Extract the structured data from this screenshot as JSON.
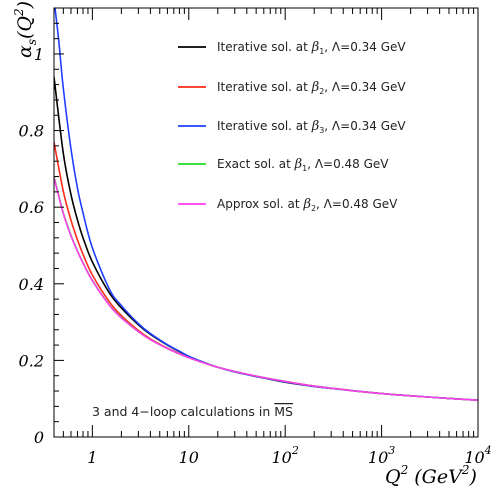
{
  "chart_data": {
    "type": "line",
    "x_scale": "log",
    "xlim": [
      0.4,
      10000
    ],
    "ylim": [
      0,
      1.12
    ],
    "grid": false,
    "legend_placement": "top-right",
    "ylabel": {
      "prefix": "α",
      "sub": "s",
      "body": "(Q",
      "sup": "2",
      "tail": ")"
    },
    "xlabel": {
      "q": "Q",
      "q_sup": "2",
      "unit": " (GeV",
      "unit_sup": "2",
      "tail": ")"
    },
    "y_ticks": [
      "0",
      "0.2",
      "0.4",
      "0.6",
      "0.8",
      "1"
    ],
    "y_tick_values": [
      0,
      0.2,
      0.4,
      0.6,
      0.8,
      1.0
    ],
    "x_ticks": [
      {
        "value": 1,
        "base": "1",
        "exp": ""
      },
      {
        "value": 10,
        "base": "10",
        "exp": ""
      },
      {
        "value": 100,
        "base": "10",
        "exp": "2"
      },
      {
        "value": 1000,
        "base": "10",
        "exp": "3"
      },
      {
        "value": 10000,
        "base": "10",
        "exp": "4"
      }
    ],
    "series": [
      {
        "name": "Iterative sol. at β1, Λ=0.34 GeV",
        "label": {
          "pre": "Iterative sol. at ",
          "beta": "β",
          "idx": "1",
          "post": ", Λ=0.34 GeV"
        },
        "color": "#000000",
        "x": [
          0.4,
          0.5,
          0.6,
          0.7,
          0.8,
          1,
          1.5,
          2,
          3,
          4,
          6,
          8,
          10,
          15,
          20,
          30,
          50,
          100,
          200,
          500,
          1000,
          2000,
          5000,
          10000
        ],
        "y": [
          0.94,
          0.74,
          0.633,
          0.567,
          0.52,
          0.457,
          0.376,
          0.337,
          0.293,
          0.268,
          0.24,
          0.223,
          0.21,
          0.193,
          0.182,
          0.17,
          0.158,
          0.143,
          0.132,
          0.121,
          0.1135,
          0.1075,
          0.1008,
          0.0962
        ]
      },
      {
        "name": "Iterative sol. at β2, Λ=0.34 GeV",
        "label": {
          "pre": "Iterative sol. at ",
          "beta": "β",
          "idx": "2",
          "post": ", Λ=0.34 GeV"
        },
        "color": "#ff2a1a",
        "x": [
          0.4,
          0.5,
          0.6,
          0.7,
          0.8,
          1,
          1.5,
          2,
          3,
          4,
          6,
          8,
          10,
          15,
          20,
          30,
          50,
          100,
          200,
          500,
          1000,
          2000,
          5000,
          10000
        ],
        "y": [
          0.77,
          0.641,
          0.566,
          0.515,
          0.477,
          0.423,
          0.353,
          0.317,
          0.278,
          0.256,
          0.232,
          0.218,
          0.208,
          0.192,
          0.182,
          0.171,
          0.159,
          0.145,
          0.133,
          0.121,
          0.1135,
          0.1075,
          0.1008,
          0.0962
        ]
      },
      {
        "name": "Iterative sol. at β3, Λ=0.34 GeV",
        "label": {
          "pre": "Iterative sol. at ",
          "beta": "β",
          "idx": "3",
          "post": ", Λ=0.34 GeV"
        },
        "color": "#1f3fff",
        "x": [
          0.41,
          0.45,
          0.5,
          0.6,
          0.7,
          0.8,
          1,
          1.5,
          2,
          3,
          4,
          6,
          8,
          10,
          15,
          20,
          30,
          50,
          100,
          200,
          500,
          1000,
          2000,
          5000,
          10000
        ],
        "y": [
          1.12,
          1.03,
          0.91,
          0.752,
          0.65,
          0.585,
          0.494,
          0.386,
          0.343,
          0.296,
          0.27,
          0.241,
          0.224,
          0.211,
          0.193,
          0.182,
          0.17,
          0.158,
          0.144,
          0.132,
          0.121,
          0.1135,
          0.1075,
          0.1008,
          0.0962
        ]
      },
      {
        "name": "Exact sol. at β1, Λ=0.48 GeV",
        "label": {
          "pre": "Exact sol. at ",
          "beta": "β",
          "idx": "1",
          "post": ", Λ=0.48 GeV"
        },
        "color": "#22dd22",
        "x": [
          0.4,
          0.5,
          0.6,
          0.7,
          0.8,
          1,
          1.5,
          2,
          3,
          4,
          6,
          8,
          10,
          15,
          20,
          30,
          50,
          100,
          200,
          500,
          1000,
          2000,
          5000,
          10000
        ],
        "y": [
          0.68,
          0.585,
          0.527,
          0.486,
          0.455,
          0.409,
          0.345,
          0.312,
          0.275,
          0.254,
          0.231,
          0.217,
          0.207,
          0.192,
          0.182,
          0.171,
          0.159,
          0.145,
          0.133,
          0.121,
          0.1135,
          0.1075,
          0.1008,
          0.0962
        ]
      },
      {
        "name": "Approx sol. at β2, Λ=0.48 GeV",
        "label": {
          "pre": "Approx sol. at ",
          "beta": "β",
          "idx": "2",
          "post": ", Λ=0.48 GeV"
        },
        "color": "#ff3cf0",
        "x": [
          0.4,
          0.5,
          0.6,
          0.7,
          0.8,
          1,
          1.5,
          2,
          3,
          4,
          6,
          8,
          10,
          15,
          20,
          30,
          50,
          100,
          200,
          500,
          1000,
          2000,
          5000,
          10000
        ],
        "y": [
          0.677,
          0.583,
          0.525,
          0.485,
          0.454,
          0.408,
          0.344,
          0.311,
          0.275,
          0.254,
          0.231,
          0.217,
          0.207,
          0.192,
          0.182,
          0.171,
          0.159,
          0.145,
          0.133,
          0.121,
          0.1135,
          0.1075,
          0.1008,
          0.0962
        ]
      }
    ],
    "annotation": {
      "text": "3 and 4−loop calculations in ",
      "scheme": "MS"
    }
  }
}
